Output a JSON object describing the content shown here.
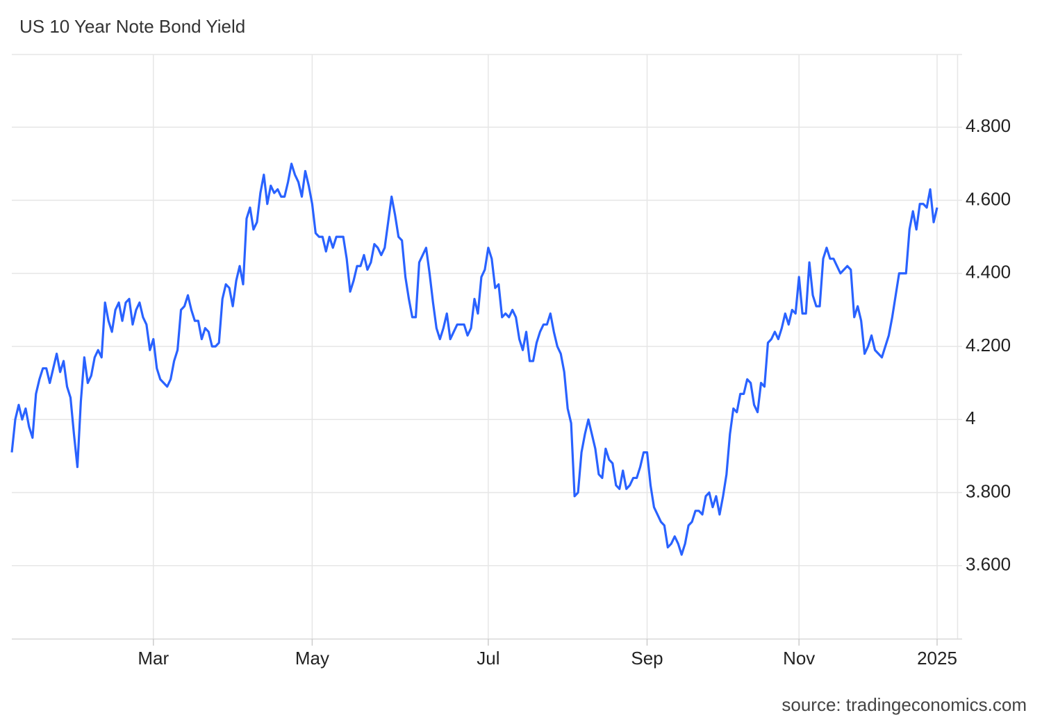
{
  "chart_data": {
    "type": "line",
    "title": "US 10 Year Note Bond Yield",
    "source": "source: tradingeconomics.com",
    "color": "#2962ff",
    "grid": true,
    "ylim": [
      3.4,
      5.0
    ],
    "yticks": [
      {
        "value": 4.8,
        "label": "4.800"
      },
      {
        "value": 4.6,
        "label": "4.600"
      },
      {
        "value": 4.4,
        "label": "4.400"
      },
      {
        "value": 4.2,
        "label": "4.200"
      },
      4,
      {
        "value": 3.8,
        "label": "3.800"
      },
      {
        "value": 3.6,
        "label": "3.600"
      }
    ],
    "categories": [
      null,
      null,
      null,
      null,
      null,
      null,
      null,
      null,
      null,
      null,
      null,
      null,
      null,
      null,
      null,
      null,
      null,
      null,
      null,
      null,
      null,
      null,
      null,
      null,
      null,
      null,
      null,
      null,
      null,
      null,
      null,
      null,
      null,
      null,
      null,
      null,
      null,
      null,
      null,
      null,
      null,
      "Mar",
      null,
      null,
      null,
      null,
      null,
      null,
      null,
      null,
      null,
      null,
      null,
      null,
      null,
      null,
      null,
      null,
      null,
      null,
      null,
      null,
      null,
      null,
      null,
      null,
      null,
      null,
      null,
      null,
      null,
      null,
      null,
      null,
      null,
      null,
      null,
      null,
      null,
      null,
      null,
      null,
      null,
      null,
      null,
      null,
      null,
      "May",
      null,
      null,
      null,
      null,
      null,
      null,
      null,
      null,
      null,
      null,
      null,
      null,
      null,
      null,
      null,
      null,
      null,
      null,
      null,
      null,
      null,
      null,
      null,
      null,
      null,
      null,
      null,
      null,
      null,
      null,
      null,
      null,
      null,
      null,
      null,
      null,
      null,
      null,
      null,
      null,
      null,
      null,
      null,
      null,
      null,
      null,
      null,
      null,
      null,
      null,
      "Jul",
      null,
      null,
      null,
      null,
      null,
      null,
      null,
      null,
      null,
      null,
      null,
      null,
      null,
      null,
      null,
      null,
      null,
      null,
      null,
      null,
      null,
      null,
      null,
      null,
      null,
      null,
      null,
      null,
      null,
      null,
      null,
      null,
      null,
      null,
      null,
      null,
      null,
      null,
      null,
      null,
      null,
      null,
      null,
      null,
      null,
      "Sep",
      null,
      null,
      null,
      null,
      null,
      null,
      null,
      null,
      null,
      null,
      null,
      null,
      null,
      null,
      null,
      null,
      null,
      null,
      null,
      null,
      null,
      null,
      null,
      null,
      null,
      null,
      null,
      null,
      null,
      null,
      null,
      null,
      null,
      null,
      null,
      null,
      null,
      null,
      null,
      null,
      null,
      null,
      null,
      "Nov",
      null,
      null,
      null,
      null,
      null,
      null,
      null,
      null,
      null,
      null,
      null,
      null,
      null,
      null,
      null,
      null,
      null,
      null,
      null,
      null,
      null,
      null,
      null,
      null,
      null,
      null,
      null,
      null,
      null,
      null,
      null,
      null,
      null,
      null,
      null,
      null,
      null,
      null,
      null,
      "2025"
    ],
    "values": [
      3.91,
      4.0,
      4.04,
      4.0,
      4.03,
      3.98,
      3.95,
      4.07,
      4.11,
      4.14,
      4.14,
      4.1,
      4.14,
      4.18,
      4.13,
      4.16,
      4.09,
      4.06,
      3.96,
      3.87,
      4.05,
      4.17,
      4.1,
      4.12,
      4.17,
      4.19,
      4.17,
      4.32,
      4.27,
      4.24,
      4.3,
      4.32,
      4.27,
      4.32,
      4.33,
      4.26,
      4.3,
      4.32,
      4.28,
      4.26,
      4.19,
      4.22,
      4.14,
      4.11,
      4.1,
      4.09,
      4.11,
      4.16,
      4.19,
      4.3,
      4.31,
      4.34,
      4.3,
      4.27,
      4.27,
      4.22,
      4.25,
      4.24,
      4.2,
      4.2,
      4.21,
      4.33,
      4.37,
      4.36,
      4.31,
      4.38,
      4.42,
      4.37,
      4.55,
      4.58,
      4.52,
      4.54,
      4.62,
      4.67,
      4.59,
      4.64,
      4.62,
      4.63,
      4.61,
      4.61,
      4.65,
      4.7,
      4.67,
      4.65,
      4.61,
      4.68,
      4.64,
      4.59,
      4.51,
      4.5,
      4.5,
      4.46,
      4.5,
      4.47,
      4.5,
      4.5,
      4.5,
      4.44,
      4.35,
      4.38,
      4.42,
      4.42,
      4.45,
      4.41,
      4.43,
      4.48,
      4.47,
      4.45,
      4.47,
      4.54,
      4.61,
      4.56,
      4.5,
      4.49,
      4.39,
      4.33,
      4.28,
      4.28,
      4.43,
      4.45,
      4.47,
      4.4,
      4.32,
      4.25,
      4.22,
      4.25,
      4.29,
      4.22,
      4.24,
      4.26,
      4.26,
      4.26,
      4.23,
      4.25,
      4.33,
      4.29,
      4.39,
      4.41,
      4.47,
      4.44,
      4.36,
      4.37,
      4.28,
      4.29,
      4.28,
      4.3,
      4.28,
      4.22,
      4.19,
      4.24,
      4.16,
      4.16,
      4.21,
      4.24,
      4.26,
      4.26,
      4.29,
      4.24,
      4.2,
      4.18,
      4.13,
      4.03,
      3.99,
      3.79,
      3.8,
      3.91,
      3.96,
      4.0,
      3.96,
      3.92,
      3.85,
      3.84,
      3.92,
      3.89,
      3.88,
      3.82,
      3.81,
      3.86,
      3.81,
      3.82,
      3.84,
      3.84,
      3.87,
      3.91,
      3.91,
      3.82,
      3.76,
      3.74,
      3.72,
      3.71,
      3.65,
      3.66,
      3.68,
      3.66,
      3.63,
      3.66,
      3.71,
      3.72,
      3.75,
      3.75,
      3.74,
      3.79,
      3.8,
      3.76,
      3.79,
      3.74,
      3.79,
      3.85,
      3.96,
      4.03,
      4.02,
      4.07,
      4.07,
      4.11,
      4.1,
      4.04,
      4.02,
      4.1,
      4.09,
      4.21,
      4.22,
      4.24,
      4.22,
      4.25,
      4.29,
      4.26,
      4.3,
      4.29,
      4.39,
      4.29,
      4.29,
      4.43,
      4.34,
      4.31,
      4.31,
      4.44,
      4.47,
      4.44,
      4.44,
      4.42,
      4.4,
      4.41,
      4.42,
      4.41,
      4.28,
      4.31,
      4.27,
      4.18,
      4.2,
      4.23,
      4.19,
      4.18,
      4.17,
      4.2,
      4.23,
      4.28,
      4.34,
      4.4,
      4.4,
      4.4,
      4.52,
      4.57,
      4.52,
      4.59,
      4.59,
      4.58,
      4.63,
      4.54,
      4.58
    ]
  }
}
